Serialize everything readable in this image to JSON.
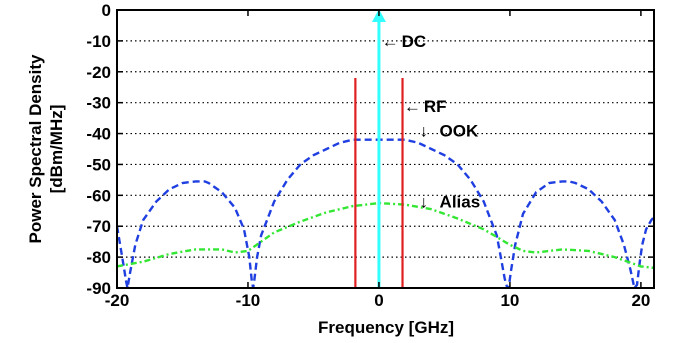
{
  "chart_data": {
    "type": "line",
    "title": "",
    "xlabel": "Frequency [GHz]",
    "ylabel_lines": [
      "Power Spectral Density",
      "[dBm/MHz]"
    ],
    "xlim": [
      -20,
      21
    ],
    "ylim": [
      -90,
      0
    ],
    "xticks": [
      -20,
      -10,
      0,
      10,
      20
    ],
    "yticks": [
      0,
      -10,
      -20,
      -30,
      -40,
      -50,
      -60,
      -70,
      -80,
      -90
    ],
    "grid": "horizontal-dotted",
    "series": [
      {
        "name": "OOK",
        "style": "dashed",
        "color": "#1f3fe0",
        "x": [
          -20,
          -19.6,
          -19.3,
          -19.2,
          -19.0,
          -18.6,
          -18.0,
          -17.0,
          -16.0,
          -15.0,
          -14.0,
          -13.3,
          -13.0,
          -12.0,
          -11.0,
          -10.3,
          -9.9,
          -9.7,
          -9.6,
          -9.5,
          -9.3,
          -9.0,
          -8.0,
          -7.0,
          -6.0,
          -5.0,
          -4.0,
          -3.0,
          -2.0,
          -1.0,
          0,
          1.0,
          2.0,
          3.0,
          4.0,
          5.0,
          6.0,
          7.0,
          8.0,
          9.0,
          9.3,
          9.6,
          9.8,
          9.9,
          10.1,
          10.4,
          11.0,
          12.0,
          13.0,
          14.0,
          14.5,
          15.0,
          16.0,
          17.0,
          18.0,
          18.7,
          19.2,
          19.5,
          19.7,
          19.9,
          20.1,
          20.4,
          20.8,
          21
        ],
        "y": [
          -70,
          -80,
          -88,
          -90,
          -85,
          -76,
          -68,
          -62,
          -58,
          -56,
          -55.5,
          -55.5,
          -56,
          -59,
          -64,
          -71,
          -80,
          -88,
          -90,
          -87,
          -80,
          -73,
          -62,
          -55,
          -50,
          -47,
          -45,
          -43,
          -42,
          -42,
          -42,
          -42,
          -42,
          -43,
          -45,
          -47,
          -50,
          -55,
          -62,
          -73,
          -80,
          -87,
          -90,
          -90,
          -84,
          -76,
          -66,
          -59,
          -56,
          -55.5,
          -55.5,
          -56,
          -58,
          -62,
          -68,
          -76,
          -84,
          -90,
          -89,
          -82,
          -76,
          -71,
          -68,
          -67
        ]
      },
      {
        "name": "Alias",
        "style": "dash-dot",
        "color": "#33e633",
        "x": [
          -20,
          -18,
          -16,
          -14,
          -12,
          -11,
          -10,
          -9,
          -8,
          -6,
          -4,
          -2,
          0,
          2,
          4,
          6,
          8,
          9,
          10,
          11,
          12,
          14,
          16,
          18,
          20,
          21
        ],
        "y": [
          -83,
          -81.5,
          -79,
          -77.5,
          -77.5,
          -78.5,
          -78,
          -75,
          -72,
          -68.5,
          -65.5,
          -63.5,
          -62.5,
          -63,
          -64.5,
          -67.5,
          -71,
          -73.5,
          -76,
          -78,
          -78.5,
          -77.5,
          -78,
          -80,
          -83,
          -83.5
        ]
      },
      {
        "name": "RF",
        "style": "solid",
        "color": "#e02020",
        "lines": [
          {
            "x": -1.8,
            "y_from": -90,
            "y_to": -22
          },
          {
            "x": 1.8,
            "y_from": -90,
            "y_to": -22
          }
        ]
      },
      {
        "name": "DC",
        "style": "arrow",
        "color": "#33ffff",
        "x": 0,
        "y_from": -90,
        "y_to": 0
      }
    ],
    "annotations": [
      {
        "text": "DC",
        "arrow": "←",
        "x": 0.2,
        "y": -10
      },
      {
        "text": "RF",
        "arrow": "←",
        "x": 1.9,
        "y": -31
      },
      {
        "text": "OOK",
        "arrow": "↓",
        "x": 3.1,
        "y": -39
      },
      {
        "text": "Alias",
        "arrow": "↓",
        "x": 3.1,
        "y": -62
      }
    ]
  }
}
